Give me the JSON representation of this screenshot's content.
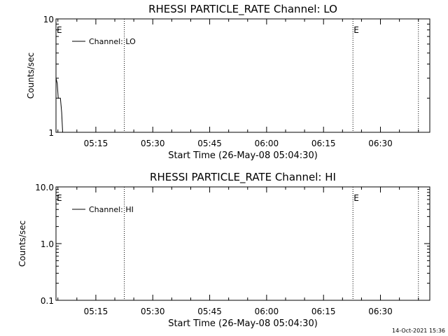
{
  "chart_data": [
    {
      "type": "line",
      "title": "RHESSI PARTICLE_RATE Channel: LO",
      "xlabel": "Start Time (26-May-08 05:04:30)",
      "ylabel": "Counts/sec",
      "yscale": "log",
      "ylim": [
        1,
        10
      ],
      "xlim": [
        "05:04:30",
        "06:43:00"
      ],
      "x_ticks": [
        "05:15",
        "05:30",
        "05:45",
        "06:00",
        "06:15",
        "06:30"
      ],
      "y_ticks": [
        "1",
        "10"
      ],
      "legend": {
        "label": "Channel: LO",
        "placement": "top-left"
      },
      "event_markers": [
        {
          "time": "05:04:30",
          "label": "E"
        },
        {
          "time": "05:22:30",
          "label": ""
        },
        {
          "time": "06:22:45",
          "label": "E"
        },
        {
          "time": "06:40:00",
          "label": ""
        }
      ],
      "series": [
        {
          "name": "Channel: LO",
          "points": [
            [
              "05:04:30",
              3.0
            ],
            [
              "05:04:50",
              2.7
            ],
            [
              "05:05:05",
              2.0
            ],
            [
              "05:05:40",
              2.0
            ],
            [
              "05:06:00",
              1.5
            ],
            [
              "05:06:15",
              1.0
            ]
          ]
        }
      ]
    },
    {
      "type": "line",
      "title": "RHESSI PARTICLE_RATE Channel: HI",
      "xlabel": "Start Time (26-May-08 05:04:30)",
      "ylabel": "Counts/sec",
      "yscale": "log",
      "ylim": [
        0.1,
        10
      ],
      "xlim": [
        "05:04:30",
        "06:43:00"
      ],
      "x_ticks": [
        "05:15",
        "05:30",
        "05:45",
        "06:00",
        "06:15",
        "06:30"
      ],
      "y_ticks": [
        "0.1",
        "1.0",
        "10.0"
      ],
      "legend": {
        "label": "Channel: HI",
        "placement": "top-left"
      },
      "event_markers": [
        {
          "time": "05:04:30",
          "label": "E"
        },
        {
          "time": "05:22:30",
          "label": ""
        },
        {
          "time": "06:22:45",
          "label": "E"
        },
        {
          "time": "06:40:00",
          "label": ""
        }
      ],
      "series": [
        {
          "name": "Channel: HI",
          "points": []
        }
      ]
    }
  ],
  "footer": {
    "timestamp": "14-Oct-2021 15:36"
  }
}
